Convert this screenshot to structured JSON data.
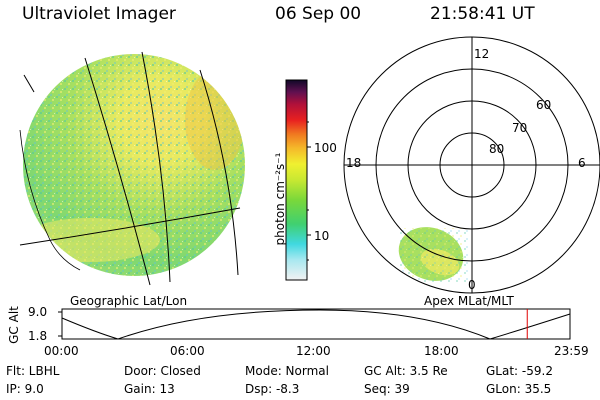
{
  "header": {
    "instrument": "Ultraviolet Imager",
    "date": "06 Sep 00",
    "time": "21:58:41 UT"
  },
  "colorbar": {
    "unit_label": "photon cm⁻²s⁻¹",
    "ticks": [
      "100",
      "10"
    ]
  },
  "polar_plot": {
    "mlt_labels": [
      "12",
      "18",
      "6",
      "0"
    ],
    "lat_labels": [
      "60",
      "70",
      "80"
    ]
  },
  "map_labels": {
    "geographic": "Geographic Lat/Lon",
    "apex": "Apex MLat/MLT"
  },
  "altitude_plot": {
    "ylabel": "GC Alt",
    "yticks": [
      "9.0",
      "1.8"
    ],
    "xticks": [
      "00:00",
      "06:00",
      "12:00",
      "18:00",
      "23:59"
    ],
    "current_time_hours": 21.98
  },
  "info": {
    "filter": "Flt: LBHL",
    "ip": "IP:  9.0",
    "door": "Door: Closed",
    "gain": "Gain: 13",
    "mode": "Mode: Normal",
    "dsp": "Dsp:    -8.3",
    "gc_alt": "GC Alt: 3.5 Re",
    "seq": "Seq: 39",
    "glat": "GLat: -59.2",
    "glon": "GLon:  35.5"
  },
  "colors": {
    "marker": "#e00000",
    "grid": "#000000"
  }
}
